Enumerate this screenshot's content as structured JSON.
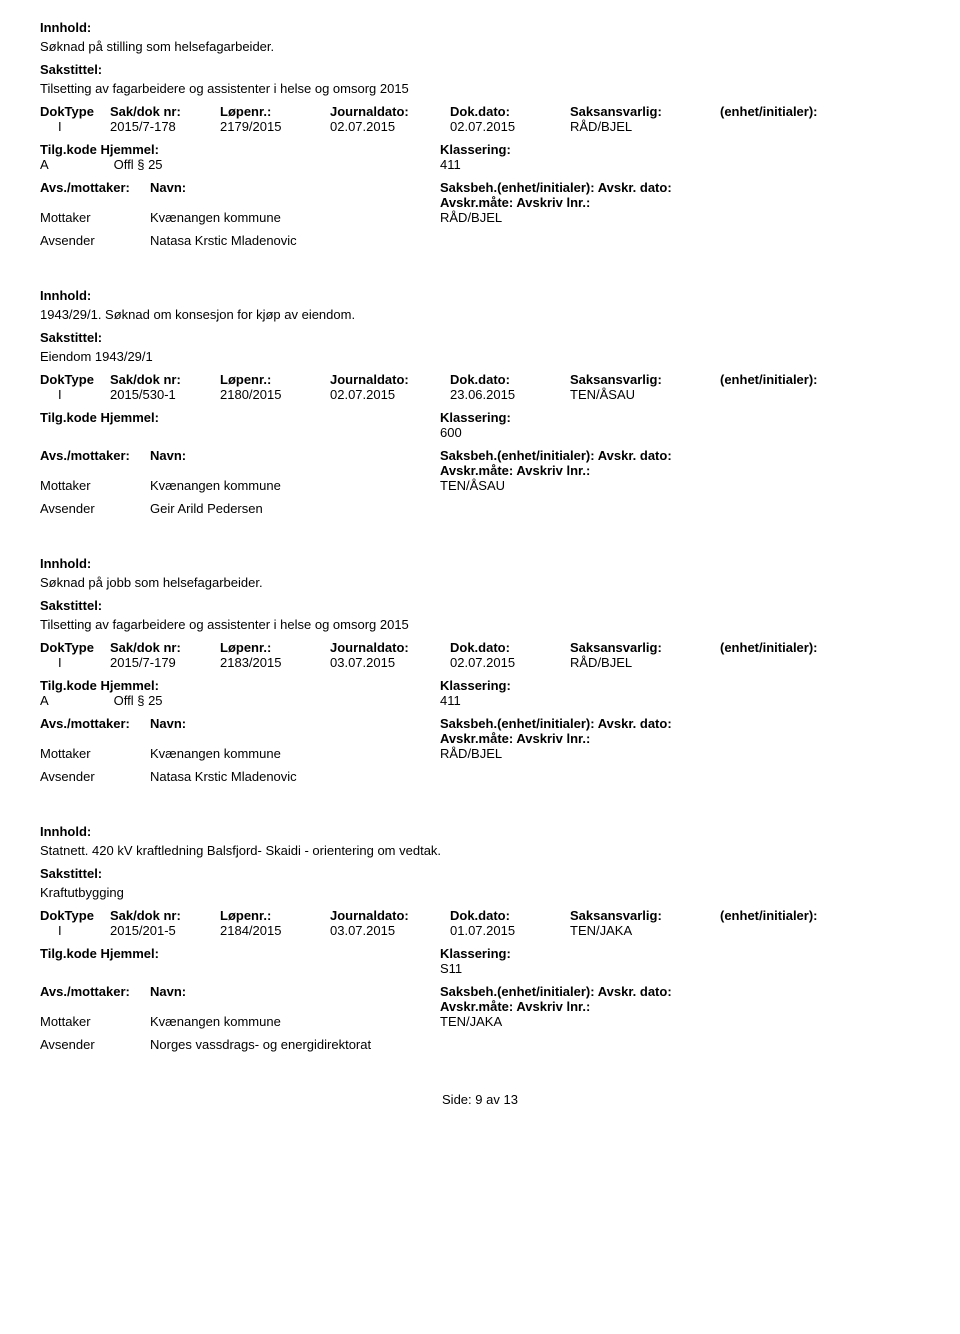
{
  "labels": {
    "innhold": "Innhold:",
    "sakstittel": "Sakstittel:",
    "doktype": "DokType",
    "saknr": "Sak/dok nr:",
    "lopenr": "Løpenr.:",
    "journaldato": "Journaldato:",
    "dokdato": "Dok.dato:",
    "saksansvarlig": "Saksansvarlig:",
    "enhet": "(enhet/initialer):",
    "tilgkode": "Tilg.kode",
    "hjemmel": "Hjemmel:",
    "klassering": "Klassering:",
    "avsmottaker": "Avs./mottaker:",
    "navn": "Navn:",
    "saksbeh": "Saksbeh.(enhet/initialer):",
    "avskrdato": "Avskr. dato:",
    "avskrmate": "Avskr.måte:",
    "avskrivlnr": "Avskriv lnr.:",
    "mottaker": "Mottaker",
    "avsender": "Avsender"
  },
  "records": [
    {
      "innhold": "Søknad på stilling som helsefagarbeider.",
      "sakstittel": "Tilsetting av fagarbeidere og assistenter i helse og omsorg 2015",
      "doktype": "I",
      "saknr": "2015/7-178",
      "lopenr": "2179/2015",
      "journaldato": "02.07.2015",
      "dokdato": "02.07.2015",
      "saksansvarlig": "RÅD/BJEL",
      "tilgkode": "A",
      "hjemmel": "Offl § 25",
      "klassering": "411",
      "mottaker_navn": "Kvænangen kommune",
      "saksbeh_val": "RÅD/BJEL",
      "avsender_navn": "Natasa Krstic Mladenovic"
    },
    {
      "innhold": "1943/29/1. Søknad om konsesjon for kjøp av eiendom.",
      "sakstittel": "Eiendom 1943/29/1",
      "doktype": "I",
      "saknr": "2015/530-1",
      "lopenr": "2180/2015",
      "journaldato": "02.07.2015",
      "dokdato": "23.06.2015",
      "saksansvarlig": "TEN/ÅSAU",
      "tilgkode": "",
      "hjemmel": "",
      "klassering": "600",
      "mottaker_navn": "Kvænangen kommune",
      "saksbeh_val": "TEN/ÅSAU",
      "avsender_navn": "Geir Arild Pedersen"
    },
    {
      "innhold": "Søknad på jobb som helsefagarbeider.",
      "sakstittel": "Tilsetting av fagarbeidere og assistenter i helse og omsorg 2015",
      "doktype": "I",
      "saknr": "2015/7-179",
      "lopenr": "2183/2015",
      "journaldato": "03.07.2015",
      "dokdato": "02.07.2015",
      "saksansvarlig": "RÅD/BJEL",
      "tilgkode": "A",
      "hjemmel": "Offl § 25",
      "klassering": "411",
      "mottaker_navn": "Kvænangen kommune",
      "saksbeh_val": "RÅD/BJEL",
      "avsender_navn": "Natasa Krstic Mladenovic"
    },
    {
      "innhold": "Statnett. 420 kV kraftledning Balsfjord- Skaidi - orientering om vedtak.",
      "sakstittel": "Kraftutbygging",
      "doktype": "I",
      "saknr": "2015/201-5",
      "lopenr": "2184/2015",
      "journaldato": "03.07.2015",
      "dokdato": "01.07.2015",
      "saksansvarlig": "TEN/JAKA",
      "tilgkode": "",
      "hjemmel": "",
      "klassering": "S11",
      "mottaker_navn": "Kvænangen kommune",
      "saksbeh_val": "TEN/JAKA",
      "avsender_navn": "Norges vassdrags- og energidirektorat"
    }
  ],
  "footer": {
    "side_label": "Side:",
    "page": "9",
    "av": "av",
    "total": "13"
  }
}
